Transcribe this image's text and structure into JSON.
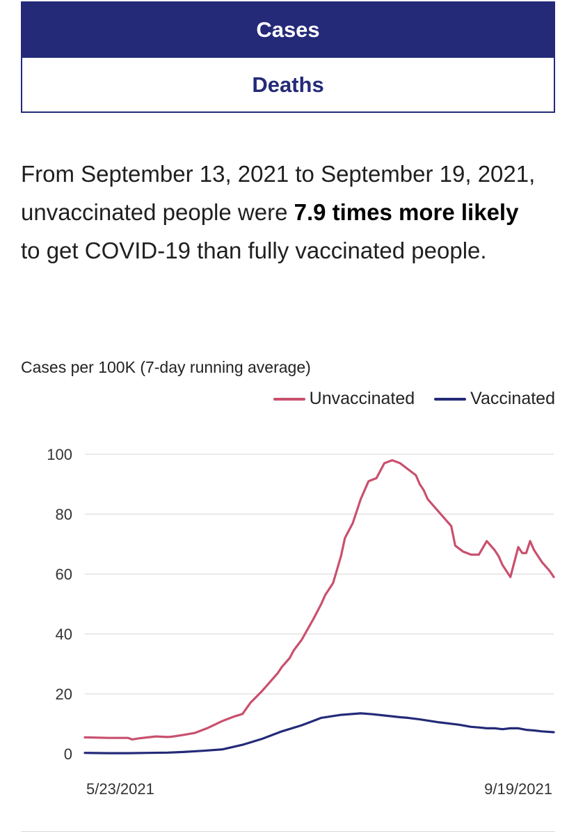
{
  "tabs": [
    {
      "label": "Cases",
      "active": true
    },
    {
      "label": "Deaths",
      "active": false
    }
  ],
  "summary": {
    "text_before": "From September 13, 2021 to September 19, 2021, unvaccinated people were ",
    "bold": "7.9 times more likely",
    "text_after": " to get COVID-19 than fully vaccinated people."
  },
  "colors": {
    "brand_navy": "#242a78",
    "unvaccinated": "#c9506e",
    "vaccinated": "#242a78"
  },
  "chart_data": {
    "type": "line",
    "title": "Cases per 100K (7-day running average)",
    "xlabel": "",
    "ylabel": "",
    "ylim": [
      0,
      100
    ],
    "yticks": [
      0,
      20,
      40,
      60,
      80,
      100
    ],
    "x_tick_labels": [
      "5/23/2021",
      "9/19/2021"
    ],
    "x_range_days": [
      0,
      119
    ],
    "grid": true,
    "legend_position": "top-right",
    "series": [
      {
        "name": "Unvaccinated",
        "x": [
          0,
          6,
          11,
          12,
          14,
          18,
          21,
          22,
          25,
          28,
          31,
          35,
          38,
          40,
          42,
          45,
          47,
          49,
          50,
          52,
          53,
          55,
          58,
          60,
          61,
          63,
          65,
          66,
          68,
          70,
          72,
          74,
          76,
          78,
          80,
          81,
          82,
          84,
          85,
          86,
          87,
          89,
          91,
          93,
          94,
          96,
          98,
          100,
          102,
          104,
          105,
          106,
          108,
          110,
          111,
          112,
          113,
          114,
          116,
          118,
          119
        ],
        "values": [
          5.5,
          5.3,
          5.3,
          4.8,
          5.2,
          5.8,
          5.6,
          5.7,
          6.3,
          7,
          8.5,
          11,
          12.5,
          13.3,
          17,
          21,
          24,
          27,
          29,
          32,
          34.5,
          38,
          45,
          50,
          53,
          57,
          66,
          72,
          77,
          85,
          91,
          92,
          97,
          98,
          97,
          96,
          95,
          93,
          90,
          88,
          85,
          82,
          79,
          76,
          69.5,
          67.5,
          66.5,
          66.5,
          71,
          68,
          66,
          63,
          59,
          69,
          67,
          67,
          71,
          68,
          64,
          61,
          59
        ]
      },
      {
        "name": "Vaccinated",
        "x": [
          0,
          6,
          11,
          16,
          21,
          25,
          30,
          35,
          40,
          45,
          50,
          55,
          58,
          60,
          65,
          70,
          73,
          76,
          80,
          82,
          85,
          90,
          95,
          98,
          100,
          102,
          104,
          106,
          108,
          110,
          112,
          114,
          116,
          119
        ],
        "values": [
          0.3,
          0.2,
          0.2,
          0.3,
          0.4,
          0.6,
          1.0,
          1.5,
          3.0,
          5.0,
          7.5,
          9.5,
          11,
          12,
          13,
          13.5,
          13.2,
          12.8,
          12.2,
          12,
          11.5,
          10.5,
          9.7,
          9,
          8.8,
          8.5,
          8.5,
          8.2,
          8.5,
          8.5,
          8,
          7.8,
          7.5,
          7.2
        ]
      }
    ]
  }
}
